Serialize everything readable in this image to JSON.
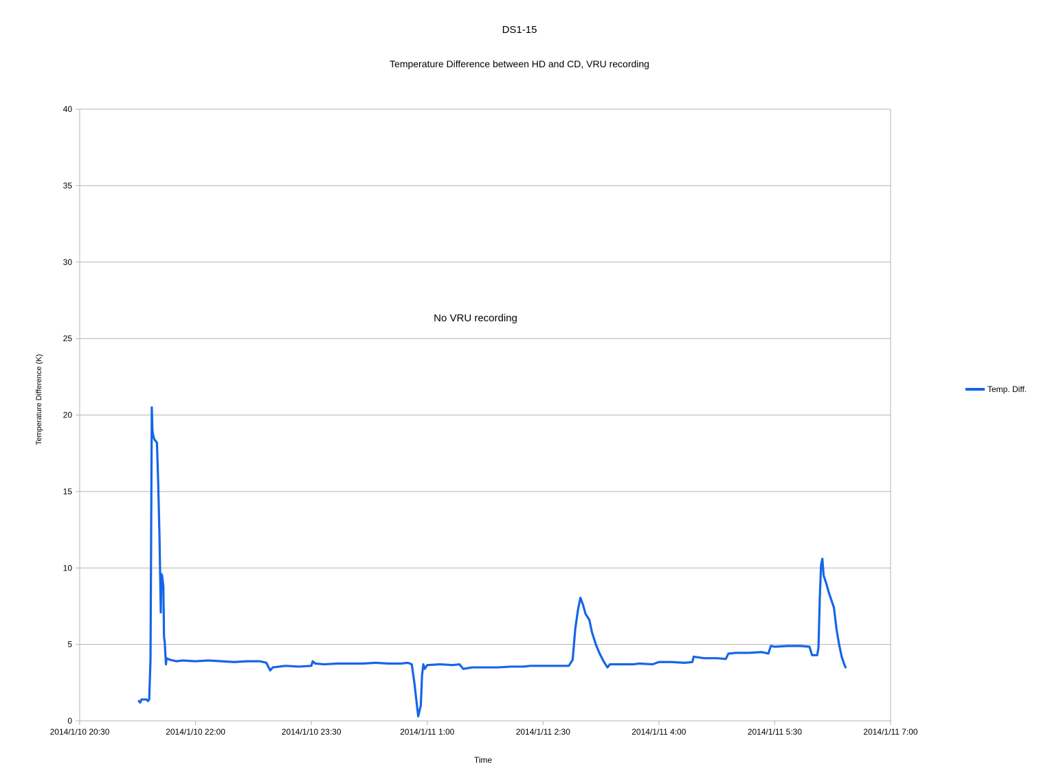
{
  "chart_data": {
    "type": "line",
    "title": "DS1-15",
    "subtitle": "Temperature Difference between HD and CD, VRU recording",
    "xlabel": "Time",
    "ylabel": "Temperature Difference (K)",
    "annotation": "No VRU recording",
    "ylim": [
      0,
      40
    ],
    "xlim": [
      "2014/1/10 20:30",
      "2014/1/11 7:00"
    ],
    "x_ticks": [
      "2014/1/10 20:30",
      "2014/1/10 22:00",
      "2014/1/10 23:30",
      "2014/1/11 1:00",
      "2014/1/11 2:30",
      "2014/1/11 4:00",
      "2014/1/11 5:30",
      "2014/1/11 7:00"
    ],
    "y_ticks": [
      0,
      5,
      10,
      15,
      20,
      25,
      30,
      35,
      40
    ],
    "grid": "horizontal",
    "legend_position": "right",
    "series": [
      {
        "name": "Temp. Diff.",
        "color": "#1565e8",
        "points": [
          [
            "2014/1/10 21:16",
            1.3
          ],
          [
            "2014/1/10 21:17",
            1.2
          ],
          [
            "2014/1/10 21:18",
            1.4
          ],
          [
            "2014/1/10 21:20",
            1.4
          ],
          [
            "2014/1/10 21:22",
            1.4
          ],
          [
            "2014/1/10 21:23",
            1.3
          ],
          [
            "2014/1/10 21:24",
            1.4
          ],
          [
            "2014/1/10 21:25",
            4.0
          ],
          [
            "2014/1/10 21:25:30",
            12.0
          ],
          [
            "2014/1/10 21:26",
            20.5
          ],
          [
            "2014/1/10 21:26:30",
            19.0
          ],
          [
            "2014/1/10 21:27",
            18.7
          ],
          [
            "2014/1/10 21:28",
            18.4
          ],
          [
            "2014/1/10 21:30",
            18.2
          ],
          [
            "2014/1/10 21:31",
            15.5
          ],
          [
            "2014/1/10 21:32",
            12.0
          ],
          [
            "2014/1/10 21:33",
            7.1
          ],
          [
            "2014/1/10 21:33:30",
            9.6
          ],
          [
            "2014/1/10 21:34",
            9.5
          ],
          [
            "2014/1/10 21:35",
            8.8
          ],
          [
            "2014/1/10 21:35:30",
            5.5
          ],
          [
            "2014/1/10 21:36",
            5.2
          ],
          [
            "2014/1/10 21:37",
            3.7
          ],
          [
            "2014/1/10 21:37:30",
            4.1
          ],
          [
            "2014/1/10 21:40",
            4.0
          ],
          [
            "2014/1/10 21:45",
            3.9
          ],
          [
            "2014/1/10 21:50",
            3.95
          ],
          [
            "2014/1/10 22:00",
            3.9
          ],
          [
            "2014/1/10 22:10",
            3.95
          ],
          [
            "2014/1/10 22:20",
            3.9
          ],
          [
            "2014/1/10 22:30",
            3.85
          ],
          [
            "2014/1/10 22:40",
            3.9
          ],
          [
            "2014/1/10 22:50",
            3.9
          ],
          [
            "2014/1/10 22:55",
            3.8
          ],
          [
            "2014/1/10 22:58",
            3.3
          ],
          [
            "2014/1/10 23:00",
            3.5
          ],
          [
            "2014/1/10 23:10",
            3.6
          ],
          [
            "2014/1/10 23:20",
            3.55
          ],
          [
            "2014/1/10 23:30",
            3.6
          ],
          [
            "2014/1/10 23:31",
            3.9
          ],
          [
            "2014/1/10 23:33",
            3.75
          ],
          [
            "2014/1/10 23:40",
            3.7
          ],
          [
            "2014/1/10 23:50",
            3.75
          ],
          [
            "2014/1/11 0:00",
            3.75
          ],
          [
            "2014/1/11 0:10",
            3.75
          ],
          [
            "2014/1/11 0:20",
            3.8
          ],
          [
            "2014/1/11 0:30",
            3.75
          ],
          [
            "2014/1/11 0:40",
            3.75
          ],
          [
            "2014/1/11 0:45",
            3.8
          ],
          [
            "2014/1/11 0:48",
            3.7
          ],
          [
            "2014/1/11 0:50",
            2.5
          ],
          [
            "2014/1/11 0:53",
            0.3
          ],
          [
            "2014/1/11 0:55",
            1.0
          ],
          [
            "2014/1/11 0:56",
            3.0
          ],
          [
            "2014/1/11 0:57",
            3.7
          ],
          [
            "2014/1/11 0:58",
            3.4
          ],
          [
            "2014/1/11 1:00",
            3.65
          ],
          [
            "2014/1/11 1:10",
            3.7
          ],
          [
            "2014/1/11 1:20",
            3.65
          ],
          [
            "2014/1/11 1:25",
            3.7
          ],
          [
            "2014/1/11 1:28",
            3.4
          ],
          [
            "2014/1/11 1:35",
            3.5
          ],
          [
            "2014/1/11 1:45",
            3.5
          ],
          [
            "2014/1/11 1:55",
            3.5
          ],
          [
            "2014/1/11 2:05",
            3.55
          ],
          [
            "2014/1/11 2:15",
            3.55
          ],
          [
            "2014/1/11 2:20",
            3.6
          ],
          [
            "2014/1/11 2:30",
            3.6
          ],
          [
            "2014/1/11 2:40",
            3.6
          ],
          [
            "2014/1/11 2:50",
            3.6
          ],
          [
            "2014/1/11 2:53",
            4.0
          ],
          [
            "2014/1/11 2:55",
            6.0
          ],
          [
            "2014/1/11 2:57",
            7.2
          ],
          [
            "2014/1/11 2:59",
            8.05
          ],
          [
            "2014/1/11 3:01",
            7.6
          ],
          [
            "2014/1/11 3:03",
            7.0
          ],
          [
            "2014/1/11 3:06",
            6.6
          ],
          [
            "2014/1/11 3:08",
            5.8
          ],
          [
            "2014/1/11 3:11",
            5.0
          ],
          [
            "2014/1/11 3:14",
            4.4
          ],
          [
            "2014/1/11 3:17",
            3.9
          ],
          [
            "2014/1/11 3:20",
            3.5
          ],
          [
            "2014/1/11 3:22",
            3.7
          ],
          [
            "2014/1/11 3:30",
            3.7
          ],
          [
            "2014/1/11 3:40",
            3.7
          ],
          [
            "2014/1/11 3:45",
            3.75
          ],
          [
            "2014/1/11 3:55",
            3.7
          ],
          [
            "2014/1/11 4:00",
            3.85
          ],
          [
            "2014/1/11 4:10",
            3.85
          ],
          [
            "2014/1/11 4:20",
            3.8
          ],
          [
            "2014/1/11 4:26",
            3.85
          ],
          [
            "2014/1/11 4:27",
            4.2
          ],
          [
            "2014/1/11 4:35",
            4.1
          ],
          [
            "2014/1/11 4:45",
            4.1
          ],
          [
            "2014/1/11 4:52",
            4.05
          ],
          [
            "2014/1/11 4:54",
            4.4
          ],
          [
            "2014/1/11 5:00",
            4.45
          ],
          [
            "2014/1/11 5:10",
            4.45
          ],
          [
            "2014/1/11 5:20",
            4.5
          ],
          [
            "2014/1/11 5:25",
            4.4
          ],
          [
            "2014/1/11 5:27",
            4.9
          ],
          [
            "2014/1/11 5:30",
            4.85
          ],
          [
            "2014/1/11 5:40",
            4.9
          ],
          [
            "2014/1/11 5:50",
            4.9
          ],
          [
            "2014/1/11 5:57",
            4.85
          ],
          [
            "2014/1/11 5:59",
            4.3
          ],
          [
            "2014/1/11 6:03",
            4.3
          ],
          [
            "2014/1/11 6:04",
            4.8
          ],
          [
            "2014/1/11 6:05",
            8.0
          ],
          [
            "2014/1/11 6:06",
            10.2
          ],
          [
            "2014/1/11 6:07",
            10.6
          ],
          [
            "2014/1/11 6:08",
            9.5
          ],
          [
            "2014/1/11 6:10",
            9.0
          ],
          [
            "2014/1/11 6:12",
            8.4
          ],
          [
            "2014/1/11 6:14",
            7.9
          ],
          [
            "2014/1/11 6:16",
            7.4
          ],
          [
            "2014/1/11 6:18",
            6.0
          ],
          [
            "2014/1/11 6:20",
            5.0
          ],
          [
            "2014/1/11 6:22",
            4.2
          ],
          [
            "2014/1/11 6:24",
            3.7
          ],
          [
            "2014/1/11 6:25",
            3.5
          ]
        ]
      }
    ]
  }
}
